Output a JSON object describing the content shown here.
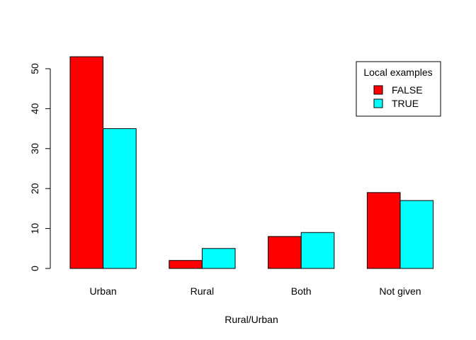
{
  "chart_data": {
    "type": "bar",
    "categories": [
      "Urban",
      "Rural",
      "Both",
      "Not given"
    ],
    "series": [
      {
        "name": "FALSE",
        "values": [
          53,
          2,
          8,
          19
        ],
        "color": "#ff0000"
      },
      {
        "name": "TRUE",
        "values": [
          35,
          5,
          9,
          17
        ],
        "color": "#00ffff"
      }
    ],
    "xlabel": "Rural/Urban",
    "ylabel": "",
    "ylim": [
      0,
      55
    ],
    "yticks": [
      0,
      10,
      20,
      30,
      40,
      50
    ],
    "grid": false,
    "legend": {
      "title": "Local examples",
      "placement": "top-right"
    }
  }
}
